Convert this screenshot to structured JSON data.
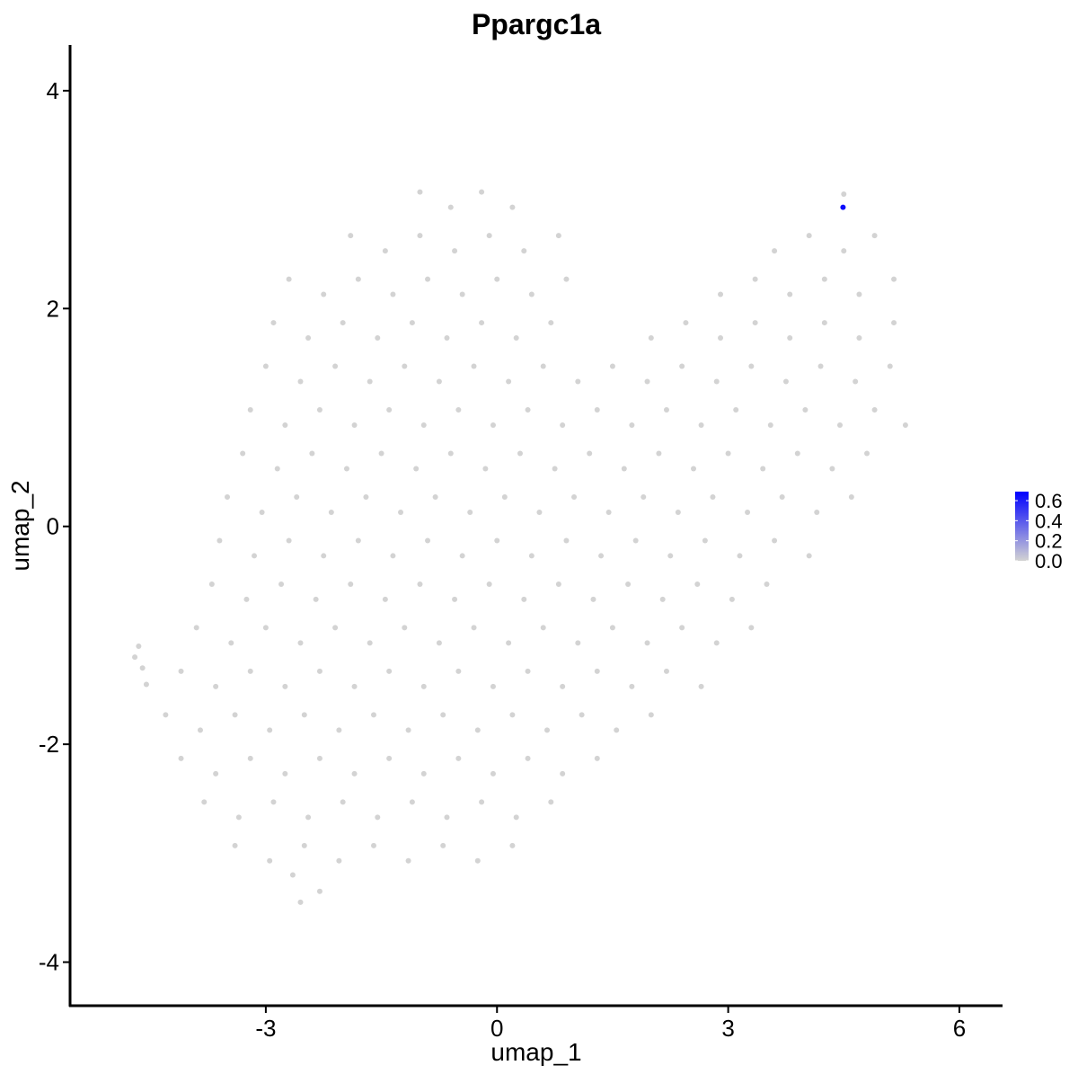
{
  "chart_data": {
    "type": "scatter",
    "title": "Ppargc1a",
    "xlabel": "umap_1",
    "ylabel": "umap_2",
    "xlim": [
      -5.54,
      6.56
    ],
    "ylim": [
      -4.4,
      4.42
    ],
    "xticks": [
      -3,
      0,
      3,
      6
    ],
    "yticks": [
      -4,
      -2,
      0,
      2,
      4
    ],
    "xtick_labels": [
      "-3",
      "0",
      "3",
      "6"
    ],
    "ytick_labels": [
      "-4",
      "-2",
      "0",
      "2",
      "4"
    ],
    "grid": false,
    "legend": {
      "placement": "right",
      "type": "colorbar",
      "range": [
        0,
        0.69
      ],
      "ticks": [
        0.0,
        0.2,
        0.4,
        0.6
      ],
      "tick_labels": [
        "0.0",
        "0.2",
        "0.4",
        "0.6"
      ],
      "low_color": "#d3d3d3",
      "high_color": "#0000ff"
    },
    "point_color_default": "#d3d3d3",
    "points_value": 0,
    "points": [
      [
        -1.0,
        3.07
      ],
      [
        -0.6,
        2.93
      ],
      [
        -0.2,
        3.07
      ],
      [
        0.2,
        2.93
      ],
      [
        4.5,
        3.05
      ],
      [
        -1.9,
        2.67
      ],
      [
        -1.45,
        2.53
      ],
      [
        -1.0,
        2.67
      ],
      [
        -0.55,
        2.53
      ],
      [
        -0.1,
        2.67
      ],
      [
        0.35,
        2.53
      ],
      [
        0.8,
        2.67
      ],
      [
        3.6,
        2.53
      ],
      [
        4.05,
        2.67
      ],
      [
        4.5,
        2.53
      ],
      [
        4.9,
        2.67
      ],
      [
        -2.7,
        2.27
      ],
      [
        -2.25,
        2.13
      ],
      [
        -1.8,
        2.27
      ],
      [
        -1.35,
        2.13
      ],
      [
        -0.9,
        2.27
      ],
      [
        -0.45,
        2.13
      ],
      [
        0.0,
        2.27
      ],
      [
        0.45,
        2.13
      ],
      [
        0.9,
        2.27
      ],
      [
        2.9,
        2.13
      ],
      [
        3.35,
        2.27
      ],
      [
        3.8,
        2.13
      ],
      [
        4.25,
        2.27
      ],
      [
        4.7,
        2.13
      ],
      [
        5.15,
        2.27
      ],
      [
        -2.9,
        1.87
      ],
      [
        -2.45,
        1.73
      ],
      [
        -2.0,
        1.87
      ],
      [
        -1.55,
        1.73
      ],
      [
        -1.1,
        1.87
      ],
      [
        -0.65,
        1.73
      ],
      [
        -0.2,
        1.87
      ],
      [
        0.25,
        1.73
      ],
      [
        0.7,
        1.87
      ],
      [
        2.0,
        1.73
      ],
      [
        2.45,
        1.87
      ],
      [
        2.9,
        1.73
      ],
      [
        3.35,
        1.87
      ],
      [
        3.8,
        1.73
      ],
      [
        4.25,
        1.87
      ],
      [
        4.7,
        1.73
      ],
      [
        5.15,
        1.87
      ],
      [
        -3.0,
        1.47
      ],
      [
        -2.55,
        1.33
      ],
      [
        -2.1,
        1.47
      ],
      [
        -1.65,
        1.33
      ],
      [
        -1.2,
        1.47
      ],
      [
        -0.75,
        1.33
      ],
      [
        -0.3,
        1.47
      ],
      [
        0.15,
        1.33
      ],
      [
        0.6,
        1.47
      ],
      [
        1.05,
        1.33
      ],
      [
        1.5,
        1.47
      ],
      [
        1.95,
        1.33
      ],
      [
        2.4,
        1.47
      ],
      [
        2.85,
        1.33
      ],
      [
        3.3,
        1.47
      ],
      [
        3.75,
        1.33
      ],
      [
        4.2,
        1.47
      ],
      [
        4.65,
        1.33
      ],
      [
        5.1,
        1.47
      ],
      [
        -3.2,
        1.07
      ],
      [
        -2.75,
        0.93
      ],
      [
        -2.3,
        1.07
      ],
      [
        -1.85,
        0.93
      ],
      [
        -1.4,
        1.07
      ],
      [
        -0.95,
        0.93
      ],
      [
        -0.5,
        1.07
      ],
      [
        -0.05,
        0.93
      ],
      [
        0.4,
        1.07
      ],
      [
        0.85,
        0.93
      ],
      [
        1.3,
        1.07
      ],
      [
        1.75,
        0.93
      ],
      [
        2.2,
        1.07
      ],
      [
        2.65,
        0.93
      ],
      [
        3.1,
        1.07
      ],
      [
        3.55,
        0.93
      ],
      [
        4.0,
        1.07
      ],
      [
        4.45,
        0.93
      ],
      [
        4.9,
        1.07
      ],
      [
        5.3,
        0.93
      ],
      [
        -3.3,
        0.67
      ],
      [
        -2.85,
        0.53
      ],
      [
        -2.4,
        0.67
      ],
      [
        -1.95,
        0.53
      ],
      [
        -1.5,
        0.67
      ],
      [
        -1.05,
        0.53
      ],
      [
        -0.6,
        0.67
      ],
      [
        -0.15,
        0.53
      ],
      [
        0.3,
        0.67
      ],
      [
        0.75,
        0.53
      ],
      [
        1.2,
        0.67
      ],
      [
        1.65,
        0.53
      ],
      [
        2.1,
        0.67
      ],
      [
        2.55,
        0.53
      ],
      [
        3.0,
        0.67
      ],
      [
        3.45,
        0.53
      ],
      [
        3.9,
        0.67
      ],
      [
        4.35,
        0.53
      ],
      [
        4.8,
        0.67
      ],
      [
        -3.5,
        0.27
      ],
      [
        -3.05,
        0.13
      ],
      [
        -2.6,
        0.27
      ],
      [
        -2.15,
        0.13
      ],
      [
        -1.7,
        0.27
      ],
      [
        -1.25,
        0.13
      ],
      [
        -0.8,
        0.27
      ],
      [
        -0.35,
        0.13
      ],
      [
        0.1,
        0.27
      ],
      [
        0.55,
        0.13
      ],
      [
        1.0,
        0.27
      ],
      [
        1.45,
        0.13
      ],
      [
        1.9,
        0.27
      ],
      [
        2.35,
        0.13
      ],
      [
        2.8,
        0.27
      ],
      [
        3.25,
        0.13
      ],
      [
        3.7,
        0.27
      ],
      [
        4.15,
        0.13
      ],
      [
        4.6,
        0.27
      ],
      [
        -3.6,
        -0.13
      ],
      [
        -3.15,
        -0.27
      ],
      [
        -2.7,
        -0.13
      ],
      [
        -2.25,
        -0.27
      ],
      [
        -1.8,
        -0.13
      ],
      [
        -1.35,
        -0.27
      ],
      [
        -0.9,
        -0.13
      ],
      [
        -0.45,
        -0.27
      ],
      [
        0.0,
        -0.13
      ],
      [
        0.45,
        -0.27
      ],
      [
        0.9,
        -0.13
      ],
      [
        1.35,
        -0.27
      ],
      [
        1.8,
        -0.13
      ],
      [
        2.25,
        -0.27
      ],
      [
        2.7,
        -0.13
      ],
      [
        3.15,
        -0.27
      ],
      [
        3.6,
        -0.13
      ],
      [
        4.05,
        -0.27
      ],
      [
        -3.7,
        -0.53
      ],
      [
        -3.25,
        -0.67
      ],
      [
        -2.8,
        -0.53
      ],
      [
        -2.35,
        -0.67
      ],
      [
        -1.9,
        -0.53
      ],
      [
        -1.45,
        -0.67
      ],
      [
        -1.0,
        -0.53
      ],
      [
        -0.55,
        -0.67
      ],
      [
        -0.1,
        -0.53
      ],
      [
        0.35,
        -0.67
      ],
      [
        0.8,
        -0.53
      ],
      [
        1.25,
        -0.67
      ],
      [
        1.7,
        -0.53
      ],
      [
        2.15,
        -0.67
      ],
      [
        2.6,
        -0.53
      ],
      [
        3.05,
        -0.67
      ],
      [
        3.5,
        -0.53
      ],
      [
        -3.9,
        -0.93
      ],
      [
        -3.45,
        -1.07
      ],
      [
        -3.0,
        -0.93
      ],
      [
        -2.55,
        -1.07
      ],
      [
        -2.1,
        -0.93
      ],
      [
        -1.65,
        -1.07
      ],
      [
        -1.2,
        -0.93
      ],
      [
        -0.75,
        -1.07
      ],
      [
        -0.3,
        -0.93
      ],
      [
        0.15,
        -1.07
      ],
      [
        0.6,
        -0.93
      ],
      [
        1.05,
        -1.07
      ],
      [
        1.5,
        -0.93
      ],
      [
        1.95,
        -1.07
      ],
      [
        2.4,
        -0.93
      ],
      [
        2.85,
        -1.07
      ],
      [
        3.3,
        -0.93
      ],
      [
        -4.1,
        -1.33
      ],
      [
        -3.65,
        -1.47
      ],
      [
        -3.2,
        -1.33
      ],
      [
        -2.75,
        -1.47
      ],
      [
        -2.3,
        -1.33
      ],
      [
        -1.85,
        -1.47
      ],
      [
        -1.4,
        -1.33
      ],
      [
        -0.95,
        -1.47
      ],
      [
        -0.5,
        -1.33
      ],
      [
        -0.05,
        -1.47
      ],
      [
        0.4,
        -1.33
      ],
      [
        0.85,
        -1.47
      ],
      [
        1.3,
        -1.33
      ],
      [
        1.75,
        -1.47
      ],
      [
        2.2,
        -1.33
      ],
      [
        2.65,
        -1.47
      ],
      [
        -4.7,
        -1.2
      ],
      [
        -4.6,
        -1.3
      ],
      [
        -4.65,
        -1.1
      ],
      [
        -4.55,
        -1.45
      ],
      [
        -4.3,
        -1.73
      ],
      [
        -3.85,
        -1.87
      ],
      [
        -3.4,
        -1.73
      ],
      [
        -2.95,
        -1.87
      ],
      [
        -2.5,
        -1.73
      ],
      [
        -2.05,
        -1.87
      ],
      [
        -1.6,
        -1.73
      ],
      [
        -1.15,
        -1.87
      ],
      [
        -0.7,
        -1.73
      ],
      [
        -0.25,
        -1.87
      ],
      [
        0.2,
        -1.73
      ],
      [
        0.65,
        -1.87
      ],
      [
        1.1,
        -1.73
      ],
      [
        1.55,
        -1.87
      ],
      [
        2.0,
        -1.73
      ],
      [
        -4.1,
        -2.13
      ],
      [
        -3.65,
        -2.27
      ],
      [
        -3.2,
        -2.13
      ],
      [
        -2.75,
        -2.27
      ],
      [
        -2.3,
        -2.13
      ],
      [
        -1.85,
        -2.27
      ],
      [
        -1.4,
        -2.13
      ],
      [
        -0.95,
        -2.27
      ],
      [
        -0.5,
        -2.13
      ],
      [
        -0.05,
        -2.27
      ],
      [
        0.4,
        -2.13
      ],
      [
        0.85,
        -2.27
      ],
      [
        1.3,
        -2.13
      ],
      [
        -3.8,
        -2.53
      ],
      [
        -3.35,
        -2.67
      ],
      [
        -2.9,
        -2.53
      ],
      [
        -2.45,
        -2.67
      ],
      [
        -2.0,
        -2.53
      ],
      [
        -1.55,
        -2.67
      ],
      [
        -1.1,
        -2.53
      ],
      [
        -0.65,
        -2.67
      ],
      [
        -0.2,
        -2.53
      ],
      [
        0.25,
        -2.67
      ],
      [
        0.7,
        -2.53
      ],
      [
        -3.4,
        -2.93
      ],
      [
        -2.95,
        -3.07
      ],
      [
        -2.5,
        -2.93
      ],
      [
        -2.05,
        -3.07
      ],
      [
        -1.6,
        -2.93
      ],
      [
        -1.15,
        -3.07
      ],
      [
        -0.7,
        -2.93
      ],
      [
        -0.25,
        -3.07
      ],
      [
        0.2,
        -2.93
      ],
      [
        -2.55,
        -3.45
      ],
      [
        -2.3,
        -3.35
      ],
      [
        -2.65,
        -3.2
      ]
    ],
    "highlighted_points": [
      {
        "x": 4.49,
        "y": 2.93,
        "value": 0.65
      }
    ]
  }
}
